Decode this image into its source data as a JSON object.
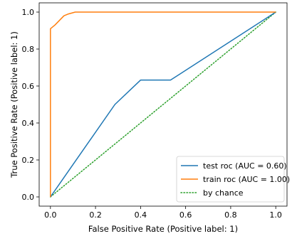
{
  "chart_data": {
    "type": "line",
    "title": "",
    "xlabel": "False Positive Rate (Positive label: 1)",
    "ylabel": "True Positive Rate (Positive label: 1)",
    "xlim": [
      -0.05,
      1.05
    ],
    "ylim": [
      -0.05,
      1.05
    ],
    "xticks": [
      0.0,
      0.2,
      0.4,
      0.6,
      0.8,
      1.0
    ],
    "yticks": [
      0.0,
      0.2,
      0.4,
      0.6,
      0.8,
      1.0
    ],
    "xtick_labels": [
      "0.0",
      "0.2",
      "0.4",
      "0.6",
      "0.8",
      "1.0"
    ],
    "ytick_labels": [
      "0.0",
      "0.2",
      "0.4",
      "0.6",
      "0.8",
      "1.0"
    ],
    "grid": false,
    "legend_position": "lower-right",
    "series": [
      {
        "name": "test roc (AUC = 0.60)",
        "color": "#1f77b4",
        "style": "solid",
        "x": [
          0.0,
          0.286,
          0.4,
          0.533,
          1.0
        ],
        "y": [
          0.0,
          0.5,
          0.632,
          0.632,
          1.0
        ]
      },
      {
        "name": "train roc (AUC = 1.00)",
        "color": "#ff7f0e",
        "style": "solid",
        "x": [
          0.0,
          0.0,
          0.02,
          0.04,
          0.06,
          0.08,
          0.11,
          1.0
        ],
        "y": [
          0.0,
          0.91,
          0.93,
          0.955,
          0.98,
          0.99,
          1.0,
          1.0
        ]
      },
      {
        "name": "by chance",
        "color": "#2ca02c",
        "style": "dotted",
        "x": [
          0.0,
          1.0
        ],
        "y": [
          0.0,
          1.0
        ]
      }
    ]
  }
}
